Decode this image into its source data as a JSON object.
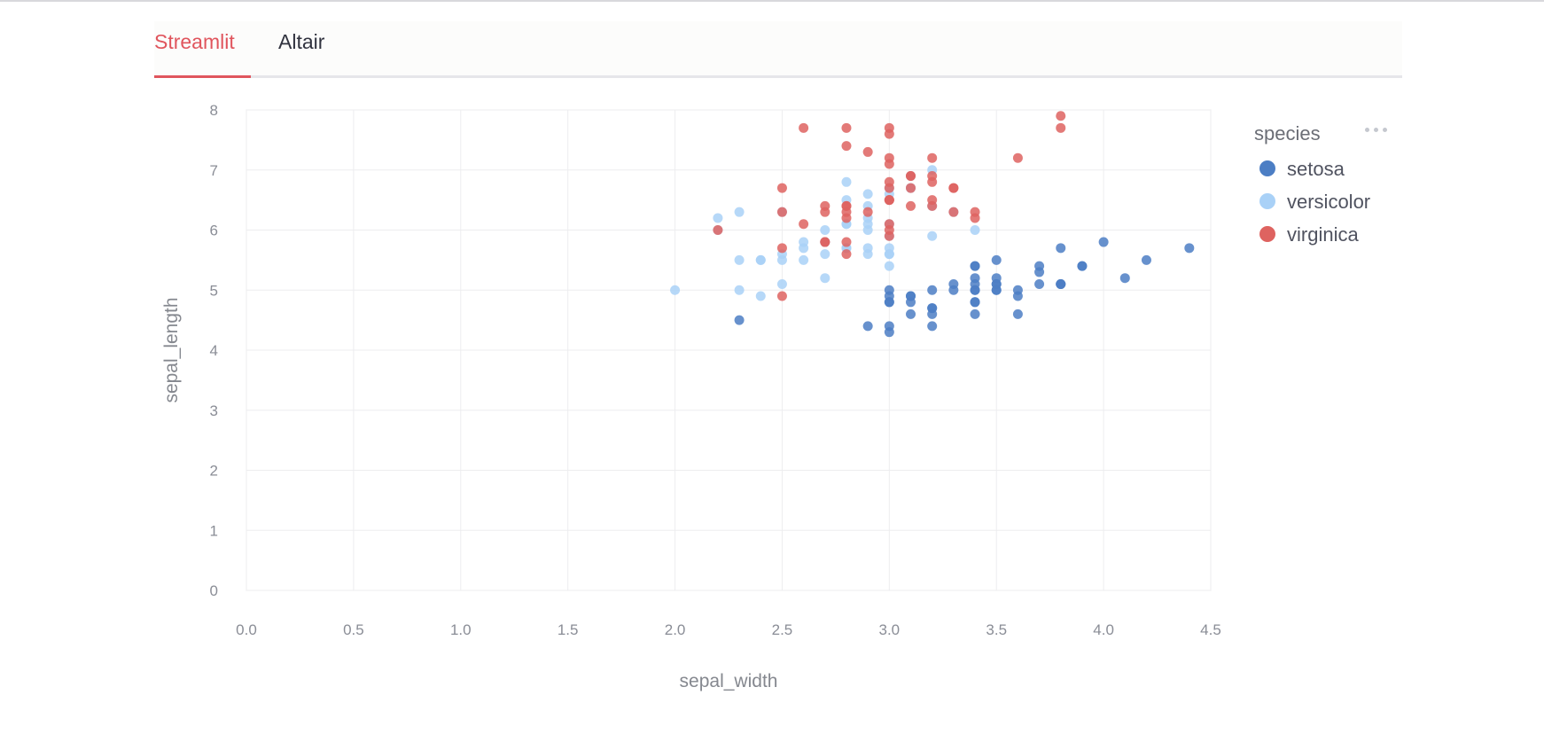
{
  "tabs": [
    {
      "label": "Streamlit",
      "active": true
    },
    {
      "label": "Altair",
      "active": false
    }
  ],
  "colors": {
    "accent": "#e0555d",
    "setosa": "#4c7ec4",
    "versicolor": "#a9d1f7",
    "virginica": "#de6360",
    "grid": "#ededef",
    "axis_text": "#8a8d96"
  },
  "chart_data": {
    "type": "scatter",
    "xlabel": "sepal_width",
    "ylabel": "sepal_length",
    "xlim": [
      0.0,
      4.5
    ],
    "ylim": [
      0,
      8
    ],
    "x_ticks": [
      "0.0",
      "0.5",
      "1.0",
      "1.5",
      "2.0",
      "2.5",
      "3.0",
      "3.5",
      "4.0",
      "4.5"
    ],
    "y_ticks": [
      "0",
      "1",
      "2",
      "3",
      "4",
      "5",
      "6",
      "7",
      "8"
    ],
    "grid": true,
    "legend": {
      "title": "species",
      "placement": "right"
    },
    "series": [
      {
        "name": "setosa",
        "points": [
          [
            3.5,
            5.1
          ],
          [
            3.0,
            4.9
          ],
          [
            3.2,
            4.7
          ],
          [
            3.1,
            4.6
          ],
          [
            3.6,
            5.0
          ],
          [
            3.9,
            5.4
          ],
          [
            3.4,
            4.6
          ],
          [
            3.4,
            5.0
          ],
          [
            2.9,
            4.4
          ],
          [
            3.1,
            4.9
          ],
          [
            3.7,
            5.4
          ],
          [
            3.4,
            4.8
          ],
          [
            3.0,
            4.8
          ],
          [
            3.0,
            4.3
          ],
          [
            4.0,
            5.8
          ],
          [
            4.4,
            5.7
          ],
          [
            3.9,
            5.4
          ],
          [
            3.5,
            5.1
          ],
          [
            3.8,
            5.7
          ],
          [
            3.8,
            5.1
          ],
          [
            3.4,
            5.4
          ],
          [
            3.7,
            5.1
          ],
          [
            3.6,
            4.6
          ],
          [
            3.3,
            5.1
          ],
          [
            3.4,
            4.8
          ],
          [
            3.0,
            5.0
          ],
          [
            3.4,
            5.0
          ],
          [
            3.5,
            5.2
          ],
          [
            3.4,
            5.2
          ],
          [
            3.2,
            4.7
          ],
          [
            3.1,
            4.8
          ],
          [
            3.4,
            5.4
          ],
          [
            4.1,
            5.2
          ],
          [
            4.2,
            5.5
          ],
          [
            3.1,
            4.9
          ],
          [
            3.2,
            5.0
          ],
          [
            3.5,
            5.5
          ],
          [
            3.6,
            4.9
          ],
          [
            3.0,
            4.4
          ],
          [
            3.4,
            5.1
          ],
          [
            3.5,
            5.0
          ],
          [
            2.3,
            4.5
          ],
          [
            3.2,
            4.4
          ],
          [
            3.5,
            5.0
          ],
          [
            3.8,
            5.1
          ],
          [
            3.0,
            4.8
          ],
          [
            3.8,
            5.1
          ],
          [
            3.2,
            4.6
          ],
          [
            3.7,
            5.3
          ],
          [
            3.3,
            5.0
          ]
        ]
      },
      {
        "name": "versicolor",
        "points": [
          [
            3.2,
            7.0
          ],
          [
            3.2,
            6.4
          ],
          [
            3.1,
            6.9
          ],
          [
            2.3,
            5.5
          ],
          [
            2.8,
            6.5
          ],
          [
            2.8,
            5.7
          ],
          [
            3.3,
            6.3
          ],
          [
            2.4,
            4.9
          ],
          [
            2.9,
            6.6
          ],
          [
            2.7,
            5.2
          ],
          [
            2.0,
            5.0
          ],
          [
            3.0,
            5.9
          ],
          [
            2.2,
            6.0
          ],
          [
            2.9,
            6.1
          ],
          [
            2.9,
            5.6
          ],
          [
            3.1,
            6.7
          ],
          [
            3.0,
            5.6
          ],
          [
            2.7,
            5.8
          ],
          [
            2.2,
            6.2
          ],
          [
            2.5,
            5.6
          ],
          [
            3.2,
            5.9
          ],
          [
            2.8,
            6.1
          ],
          [
            2.5,
            6.3
          ],
          [
            2.8,
            6.1
          ],
          [
            2.9,
            6.4
          ],
          [
            3.0,
            6.6
          ],
          [
            2.8,
            6.8
          ],
          [
            3.0,
            6.7
          ],
          [
            2.9,
            6.0
          ],
          [
            2.6,
            5.7
          ],
          [
            2.4,
            5.5
          ],
          [
            2.4,
            5.5
          ],
          [
            2.7,
            5.8
          ],
          [
            2.7,
            6.0
          ],
          [
            3.0,
            5.4
          ],
          [
            3.4,
            6.0
          ],
          [
            3.1,
            6.7
          ],
          [
            2.3,
            6.3
          ],
          [
            3.0,
            5.6
          ],
          [
            2.5,
            5.5
          ],
          [
            2.6,
            5.5
          ],
          [
            3.0,
            6.1
          ],
          [
            2.6,
            5.8
          ],
          [
            2.3,
            5.0
          ],
          [
            2.7,
            5.6
          ],
          [
            3.0,
            5.7
          ],
          [
            2.9,
            5.7
          ],
          [
            2.9,
            6.2
          ],
          [
            2.5,
            5.1
          ],
          [
            2.8,
            5.7
          ]
        ]
      },
      {
        "name": "virginica",
        "points": [
          [
            3.3,
            6.3
          ],
          [
            2.7,
            5.8
          ],
          [
            3.0,
            7.1
          ],
          [
            2.9,
            6.3
          ],
          [
            3.0,
            6.5
          ],
          [
            3.0,
            7.6
          ],
          [
            2.5,
            4.9
          ],
          [
            2.9,
            7.3
          ],
          [
            2.5,
            6.7
          ],
          [
            3.6,
            7.2
          ],
          [
            3.2,
            6.5
          ],
          [
            2.7,
            6.4
          ],
          [
            3.0,
            6.8
          ],
          [
            2.5,
            5.7
          ],
          [
            2.8,
            5.8
          ],
          [
            3.2,
            6.4
          ],
          [
            3.0,
            6.5
          ],
          [
            3.8,
            7.7
          ],
          [
            2.6,
            7.7
          ],
          [
            2.2,
            6.0
          ],
          [
            3.2,
            6.9
          ],
          [
            2.8,
            5.6
          ],
          [
            2.8,
            7.7
          ],
          [
            2.7,
            6.3
          ],
          [
            3.3,
            6.7
          ],
          [
            3.2,
            7.2
          ],
          [
            2.8,
            6.2
          ],
          [
            3.0,
            6.1
          ],
          [
            2.8,
            6.4
          ],
          [
            3.0,
            7.2
          ],
          [
            2.8,
            7.4
          ],
          [
            3.8,
            7.9
          ],
          [
            2.8,
            6.4
          ],
          [
            2.8,
            6.3
          ],
          [
            2.6,
            6.1
          ],
          [
            3.0,
            7.7
          ],
          [
            3.4,
            6.3
          ],
          [
            3.1,
            6.4
          ],
          [
            3.0,
            6.0
          ],
          [
            3.1,
            6.9
          ],
          [
            3.1,
            6.7
          ],
          [
            3.1,
            6.9
          ],
          [
            2.7,
            5.8
          ],
          [
            3.2,
            6.8
          ],
          [
            3.3,
            6.7
          ],
          [
            3.0,
            6.7
          ],
          [
            2.5,
            6.3
          ],
          [
            3.0,
            6.5
          ],
          [
            3.4,
            6.2
          ],
          [
            3.0,
            5.9
          ]
        ]
      }
    ]
  }
}
